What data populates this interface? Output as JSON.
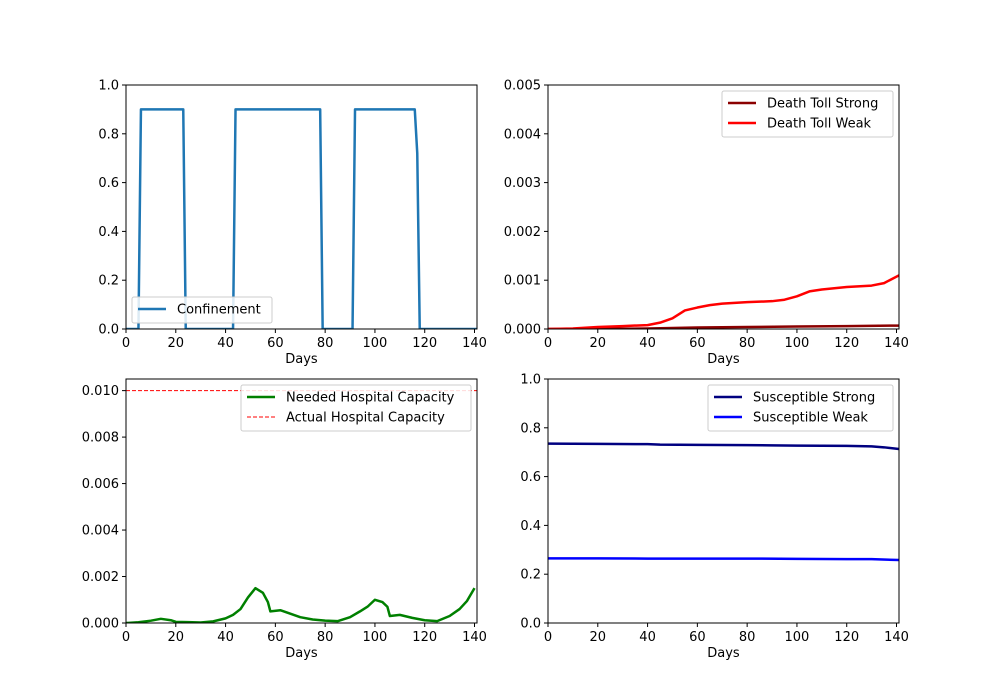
{
  "chart_data": [
    {
      "type": "line",
      "xlabel": "Days",
      "ylabel": "",
      "xlim": [
        0,
        141
      ],
      "ylim": [
        0,
        1.0
      ],
      "xticks": [
        "0",
        "20",
        "40",
        "60",
        "80",
        "100",
        "120",
        "140"
      ],
      "yticks": [
        "0.0",
        "0.2",
        "0.4",
        "0.6",
        "0.8",
        "1.0"
      ],
      "legend_position": "lower-left",
      "series": [
        {
          "name": "Confinement",
          "color": "#1f77b4",
          "width": 2.5,
          "x": [
            0,
            5,
            6,
            23,
            24,
            43,
            44,
            78,
            79,
            91,
            92,
            116,
            117,
            118,
            141
          ],
          "y": [
            0,
            0,
            0.9,
            0.9,
            0,
            0,
            0.9,
            0.9,
            0,
            0,
            0.9,
            0.9,
            0.72,
            0,
            0
          ]
        }
      ]
    },
    {
      "type": "line",
      "xlabel": "Days",
      "ylabel": "",
      "xlim": [
        0,
        141
      ],
      "ylim": [
        0,
        0.005
      ],
      "xticks": [
        "0",
        "20",
        "40",
        "60",
        "80",
        "100",
        "120",
        "140"
      ],
      "yticks": [
        "0.000",
        "0.001",
        "0.002",
        "0.003",
        "0.004",
        "0.005"
      ],
      "legend_position": "top-right",
      "series": [
        {
          "name": "Death Toll Strong",
          "color": "#8b0000",
          "width": 2.5,
          "x": [
            0,
            20,
            40,
            60,
            80,
            100,
            120,
            141
          ],
          "y": [
            0,
            4e-06,
            1e-05,
            3e-05,
            4e-05,
            5e-05,
            6e-05,
            7e-05
          ]
        },
        {
          "name": "Death Toll Weak",
          "color": "#ff0000",
          "width": 2.5,
          "x": [
            0,
            10,
            20,
            30,
            40,
            45,
            50,
            55,
            60,
            65,
            70,
            80,
            90,
            95,
            100,
            105,
            110,
            120,
            130,
            135,
            141
          ],
          "y": [
            0,
            1e-05,
            4e-05,
            6e-05,
            8e-05,
            0.00013,
            0.00022,
            0.00038,
            0.00044,
            0.00049,
            0.00052,
            0.00055,
            0.00057,
            0.0006,
            0.00067,
            0.00077,
            0.00081,
            0.00086,
            0.00089,
            0.00094,
            0.0011
          ]
        }
      ]
    },
    {
      "type": "line",
      "xlabel": "Days",
      "ylabel": "",
      "xlim": [
        0,
        141
      ],
      "ylim": [
        0,
        0.0105
      ],
      "xticks": [
        "0",
        "20",
        "40",
        "60",
        "80",
        "100",
        "120",
        "140"
      ],
      "yticks": [
        "0.000",
        "0.002",
        "0.004",
        "0.006",
        "0.008",
        "0.010"
      ],
      "legend_position": "top-right",
      "series": [
        {
          "name": "Needed Hospital Capacity",
          "color": "#008000",
          "width": 2.5,
          "x": [
            0,
            5,
            10,
            14,
            18,
            20,
            25,
            30,
            35,
            40,
            43,
            46,
            49,
            52,
            55,
            57,
            58,
            62,
            66,
            70,
            75,
            80,
            85,
            90,
            94,
            97,
            100,
            103,
            105,
            106,
            110,
            115,
            120,
            125,
            130,
            134,
            137,
            140
          ],
          "y": [
            0,
            3e-05,
            0.0001,
            0.00018,
            0.00012,
            5e-05,
            4e-05,
            2e-05,
            7e-05,
            0.0002,
            0.00035,
            0.0006,
            0.0011,
            0.0015,
            0.0013,
            0.0009,
            0.0005,
            0.00055,
            0.0004,
            0.00025,
            0.00015,
            0.0001,
            8e-05,
            0.00025,
            0.0005,
            0.0007,
            0.001,
            0.0009,
            0.0007,
            0.0003,
            0.00035,
            0.00022,
            0.00012,
            8e-05,
            0.0003,
            0.0006,
            0.00095,
            0.0015
          ]
        },
        {
          "name": "Actual Hospital Capacity",
          "color": "#ff0000",
          "width": 1,
          "dashed": true,
          "x": [
            0,
            141
          ],
          "y": [
            0.01,
            0.01
          ]
        }
      ]
    },
    {
      "type": "line",
      "xlabel": "Days",
      "ylabel": "",
      "xlim": [
        0,
        141
      ],
      "ylim": [
        0,
        1.0
      ],
      "xticks": [
        "0",
        "20",
        "40",
        "60",
        "80",
        "100",
        "120",
        "140"
      ],
      "yticks": [
        "0.0",
        "0.2",
        "0.4",
        "0.6",
        "0.8",
        "1.0"
      ],
      "legend_position": "top-right",
      "series": [
        {
          "name": "Susceptible Strong",
          "color": "#000080",
          "width": 2.5,
          "x": [
            0,
            20,
            40,
            45,
            60,
            80,
            90,
            100,
            120,
            130,
            135,
            141
          ],
          "y": [
            0.735,
            0.734,
            0.733,
            0.731,
            0.73,
            0.729,
            0.728,
            0.727,
            0.726,
            0.724,
            0.72,
            0.713
          ]
        },
        {
          "name": "Susceptible Weak",
          "color": "#0000ff",
          "width": 2.5,
          "x": [
            0,
            20,
            40,
            60,
            80,
            100,
            120,
            130,
            141
          ],
          "y": [
            0.265,
            0.265,
            0.264,
            0.264,
            0.264,
            0.263,
            0.262,
            0.262,
            0.258
          ]
        }
      ]
    }
  ]
}
